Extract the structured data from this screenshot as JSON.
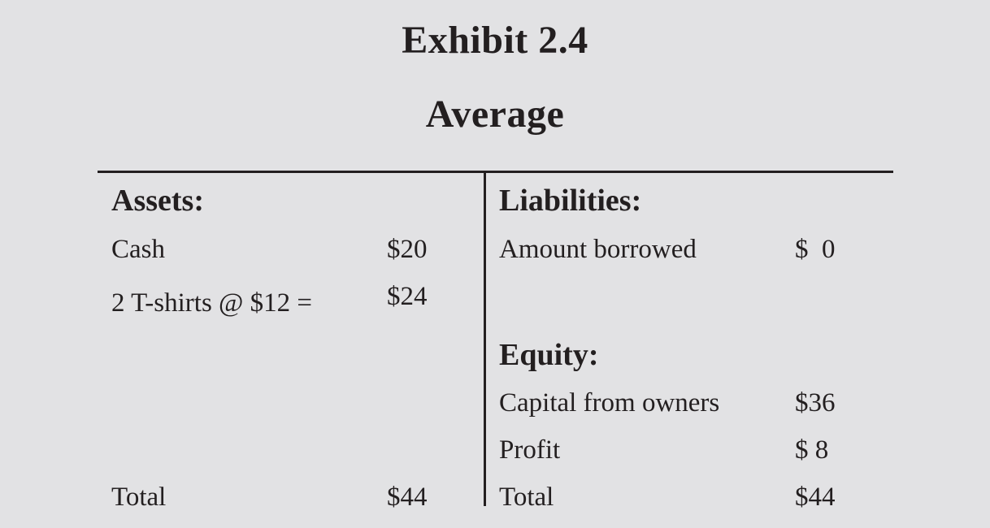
{
  "exhibit": {
    "title": "Exhibit 2.4",
    "subtitle": "Average"
  },
  "assets": {
    "heading": "Assets:",
    "items": [
      {
        "label": "Cash",
        "value": "$20"
      },
      {
        "label": "2 T-shirts @ $12 =",
        "value": "$24"
      }
    ],
    "total": {
      "label": "Total",
      "value": "$44"
    }
  },
  "liabilities": {
    "heading": "Liabilities:",
    "items": [
      {
        "label": "Amount borrowed",
        "value": "$  0"
      }
    ]
  },
  "equity": {
    "heading": "Equity:",
    "items": [
      {
        "label": "Capital from owners",
        "value": "$36"
      },
      {
        "label": "Profit",
        "value": "$ 8"
      }
    ],
    "total": {
      "label": "Total",
      "value": "$44"
    }
  },
  "colors": {
    "background": "#e2e2e4",
    "text": "#231f20"
  }
}
